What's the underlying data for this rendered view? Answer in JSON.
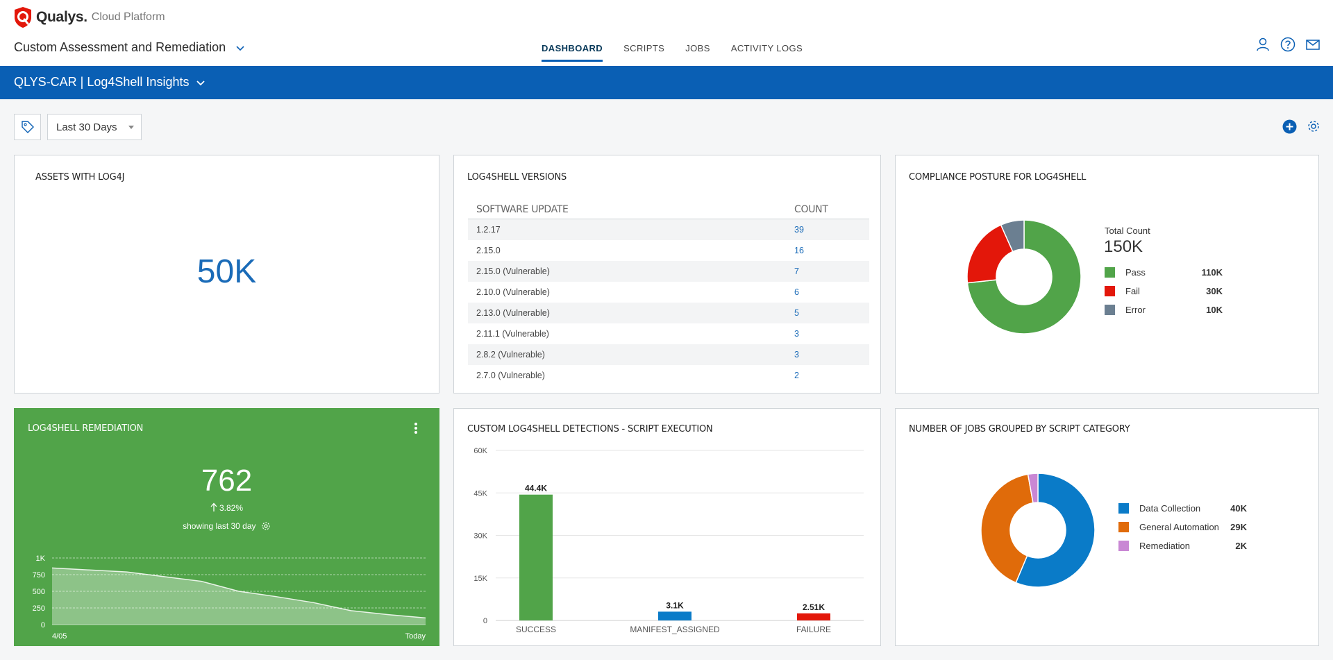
{
  "brand": {
    "name": "Qualys.",
    "platform": "Cloud Platform"
  },
  "app": {
    "title": "Custom Assessment and Remediation"
  },
  "nav": {
    "tabs": [
      {
        "label": "DASHBOARD",
        "active": true
      },
      {
        "label": "SCRIPTS",
        "active": false
      },
      {
        "label": "JOBS",
        "active": false
      },
      {
        "label": "ACTIVITY LOGS",
        "active": false
      }
    ]
  },
  "header_icons": [
    "user-icon",
    "help-icon",
    "mail-icon"
  ],
  "dashboard": {
    "title": "QLYS-CAR | Log4Shell Insights"
  },
  "filter": {
    "range_label": "Last 30 Days"
  },
  "colors": {
    "accent": "#0a5fb4",
    "success": "#51a449",
    "fail": "#e3170a",
    "error": "#6b7f91",
    "blue": "#0a7bc8",
    "orange": "#e06b0a",
    "purple": "#c987d4"
  },
  "widgets": {
    "assets": {
      "title": "ASSETS WITH LOG4J",
      "value": "50K"
    },
    "versions": {
      "title": "LOG4SHELL VERSIONS",
      "columns": [
        "SOFTWARE UPDATE",
        "COUNT"
      ],
      "rows": [
        {
          "name": "1.2.17",
          "count": "39"
        },
        {
          "name": "2.15.0",
          "count": "16"
        },
        {
          "name": "2.15.0 (Vulnerable)",
          "count": "7"
        },
        {
          "name": "2.10.0 (Vulnerable)",
          "count": "6"
        },
        {
          "name": "2.13.0 (Vulnerable)",
          "count": "5"
        },
        {
          "name": "2.11.1 (Vulnerable)",
          "count": "3"
        },
        {
          "name": "2.8.2 (Vulnerable)",
          "count": "3"
        },
        {
          "name": "2.7.0 (Vulnerable)",
          "count": "2"
        }
      ]
    },
    "compliance": {
      "title": "COMPLIANCE POSTURE FOR LOG4SHELL",
      "total_label": "Total Count",
      "total_value": "150K",
      "items": [
        {
          "label": "Pass",
          "value": "110K",
          "color": "#51a449"
        },
        {
          "label": "Fail",
          "value": "30K",
          "color": "#e3170a"
        },
        {
          "label": "Error",
          "value": "10K",
          "color": "#6b7f91"
        }
      ]
    },
    "remediation": {
      "title": "LOG4SHELL REMEDIATION",
      "value": "762",
      "change": "3.82%",
      "subtitle": "showing last 30 day"
    },
    "detections": {
      "title": "CUSTOM LOG4SHELL DETECTIONS - SCRIPT EXECUTION"
    },
    "jobs": {
      "title": "NUMBER OF JOBS GROUPED BY SCRIPT CATEGORY",
      "items": [
        {
          "label": "Data Collection",
          "value": "40K",
          "color": "#0a7bc8"
        },
        {
          "label": "General Automation",
          "value": "29K",
          "color": "#e06b0a"
        },
        {
          "label": "Remediation",
          "value": "2K",
          "color": "#c987d4"
        }
      ]
    }
  },
  "chart_data": [
    {
      "type": "pie",
      "title": "COMPLIANCE POSTURE FOR LOG4SHELL",
      "categories": [
        "Pass",
        "Fail",
        "Error"
      ],
      "values": [
        110000,
        30000,
        10000
      ],
      "donut": true,
      "legend": "right"
    },
    {
      "type": "area",
      "title": "LOG4SHELL REMEDIATION",
      "x": [
        "4/05",
        "",
        "",
        "",
        "",
        "",
        "",
        "",
        "",
        "",
        "Today"
      ],
      "values": [
        850,
        820,
        790,
        720,
        650,
        500,
        420,
        330,
        210,
        150,
        100
      ],
      "ylim": [
        0,
        1000
      ],
      "yticks": [
        "0",
        "250",
        "500",
        "750",
        "1K"
      ],
      "xticks": [
        "4/05",
        "Today"
      ],
      "grid": true
    },
    {
      "type": "bar",
      "title": "CUSTOM LOG4SHELL DETECTIONS - SCRIPT EXECUTION",
      "categories": [
        "SUCCESS",
        "MANIFEST_ASSIGNED",
        "FAILURE"
      ],
      "values": [
        44400,
        3100,
        2510
      ],
      "labels": [
        "44.4K",
        "3.1K",
        "2.51K"
      ],
      "colors": [
        "#51a449",
        "#0a7bc8",
        "#e3170a"
      ],
      "ylim": [
        0,
        60000
      ],
      "yticks": [
        "0",
        "15K",
        "30K",
        "45K",
        "60K"
      ],
      "grid": true
    },
    {
      "type": "pie",
      "title": "NUMBER OF JOBS GROUPED BY SCRIPT CATEGORY",
      "categories": [
        "Data Collection",
        "General Automation",
        "Remediation"
      ],
      "values": [
        40000,
        29000,
        2000
      ],
      "donut": true,
      "legend": "right"
    }
  ]
}
